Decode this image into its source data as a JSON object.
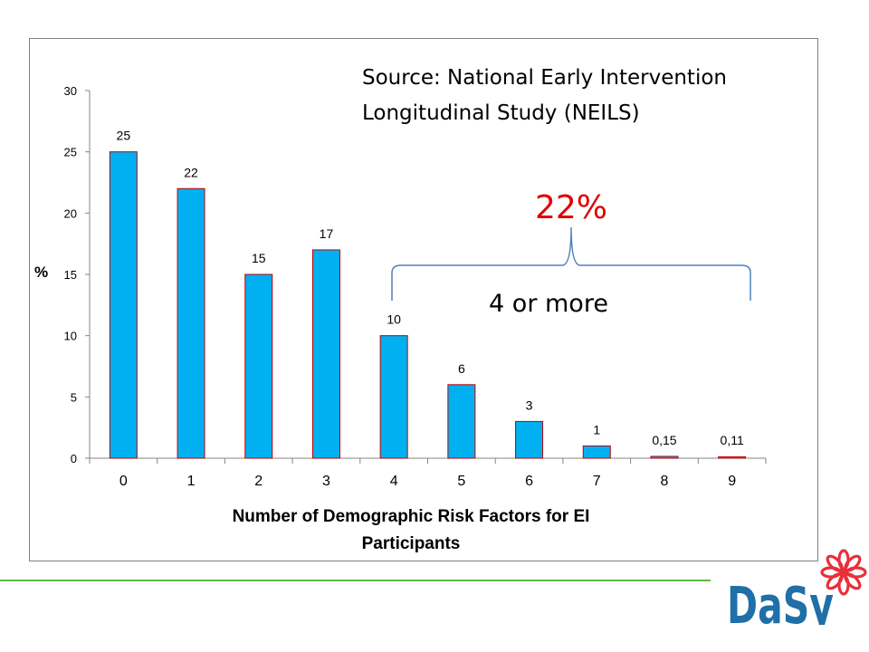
{
  "chart_data": {
    "type": "bar",
    "categories": [
      "0",
      "1",
      "2",
      "3",
      "4",
      "5",
      "6",
      "7",
      "8",
      "9"
    ],
    "values": [
      25,
      22,
      15,
      17,
      10,
      6,
      3,
      1,
      0.15,
      0.11
    ],
    "data_labels": [
      "25",
      "22",
      "15",
      "17",
      "10",
      "6",
      "3",
      "1",
      "0,15",
      "0,11"
    ],
    "xlabel_lines": [
      "Number of Demographic Risk Factors for EI",
      "Participants"
    ],
    "ylabel": "%",
    "ylim": [
      0,
      30
    ],
    "yticks": [
      "0",
      "5",
      "10",
      "15",
      "20",
      "25",
      "30"
    ],
    "grid": false,
    "bar_color": "#00b0f0",
    "bar_edge_color": "#c00000"
  },
  "annotations": {
    "source_line1": "Source:  National Early Intervention",
    "source_line2": "Longitudinal Study (NEILS)",
    "percent": "22%",
    "brace_label": "4 or more",
    "brace_color": "#4f81bd"
  },
  "logo": {
    "text": "DaSy",
    "colors": {
      "text": "#1f6fa8",
      "flower": "#e8303a"
    }
  },
  "rule_color": "#5fb84a"
}
